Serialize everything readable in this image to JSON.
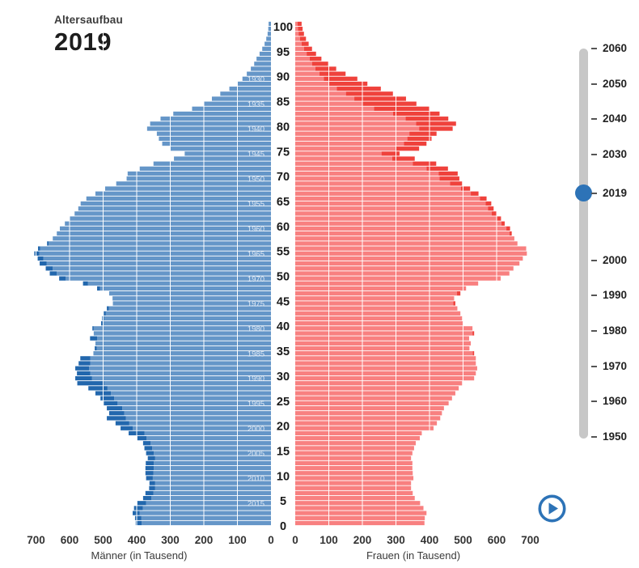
{
  "header": {
    "label": "Altersaufbau",
    "year": "2019"
  },
  "chart_data": {
    "type": "bar",
    "variant": "population_pyramid",
    "title": "Altersaufbau 2019",
    "xlabel_left": "Männer (in Tausend)",
    "xlabel_right": "Frauen (in Tausend)",
    "unit": "Tausend",
    "xlim": [
      0,
      700
    ],
    "value_ticks": [
      0,
      100,
      200,
      300,
      400,
      500,
      600,
      700
    ],
    "age_ticks": [
      0,
      5,
      10,
      15,
      20,
      25,
      30,
      35,
      40,
      45,
      50,
      55,
      60,
      65,
      70,
      75,
      80,
      85,
      90,
      95,
      100
    ],
    "age_range": [
      0,
      100
    ],
    "base_year": 2019,
    "cohort_years": [
      1930,
      1935,
      1940,
      1945,
      1950,
      1955,
      1960,
      1965,
      1970,
      1975,
      1980,
      1985,
      1990,
      1995,
      2000,
      2005,
      2010,
      2015
    ],
    "grid": true,
    "legend": "none",
    "men": [
      403,
      405,
      412,
      408,
      398,
      381,
      374,
      363,
      362,
      372,
      374,
      374,
      373,
      367,
      372,
      377,
      381,
      398,
      424,
      448,
      463,
      489,
      482,
      489,
      498,
      508,
      523,
      544,
      577,
      583,
      578,
      583,
      573,
      568,
      529,
      525,
      523,
      539,
      528,
      532,
      506,
      503,
      498,
      489,
      471,
      472,
      482,
      518,
      560,
      631,
      659,
      671,
      689,
      695,
      705,
      694,
      667,
      650,
      638,
      629,
      614,
      599,
      585,
      574,
      567,
      550,
      523,
      494,
      461,
      430,
      427,
      391,
      350,
      289,
      257,
      301,
      324,
      334,
      340,
      369,
      360,
      329,
      291,
      235,
      199,
      176,
      151,
      124,
      100,
      85,
      72,
      60,
      50,
      43,
      34,
      26,
      19,
      14,
      10,
      8,
      7
    ],
    "women": [
      385,
      386,
      391,
      382,
      372,
      356,
      350,
      345,
      345,
      352,
      350,
      349,
      349,
      345,
      349,
      354,
      359,
      371,
      377,
      412,
      422,
      432,
      437,
      443,
      457,
      467,
      477,
      487,
      497,
      533,
      538,
      542,
      538,
      538,
      533,
      519,
      523,
      518,
      533,
      528,
      501,
      497,
      492,
      483,
      477,
      473,
      492,
      509,
      545,
      612,
      638,
      650,
      668,
      678,
      690,
      688,
      662,
      652,
      645,
      640,
      624,
      613,
      601,
      591,
      584,
      570,
      546,
      521,
      497,
      489,
      484,
      455,
      420,
      356,
      311,
      369,
      391,
      406,
      421,
      469,
      479,
      456,
      430,
      399,
      361,
      330,
      291,
      255,
      215,
      185,
      150,
      122,
      98,
      78,
      62,
      50,
      40,
      32,
      26,
      22,
      19
    ]
  },
  "slider": {
    "years": [
      2060,
      2050,
      2040,
      2030,
      2019,
      2000,
      1990,
      1980,
      1970,
      1960,
      1950
    ],
    "selected": 2019,
    "range": [
      1950,
      2060
    ]
  },
  "colors": {
    "men": "#6596c8",
    "men_surplus": "#2267ad",
    "women": "#f88080",
    "women_surplus": "#ef423c",
    "accent": "#2d73b7",
    "slider_track": "#c7c7c7",
    "tick_text": "#333333",
    "age_label": "#1a1a1a",
    "cohort_label": "#e3ecf7",
    "grid_line": "#ffffff"
  }
}
